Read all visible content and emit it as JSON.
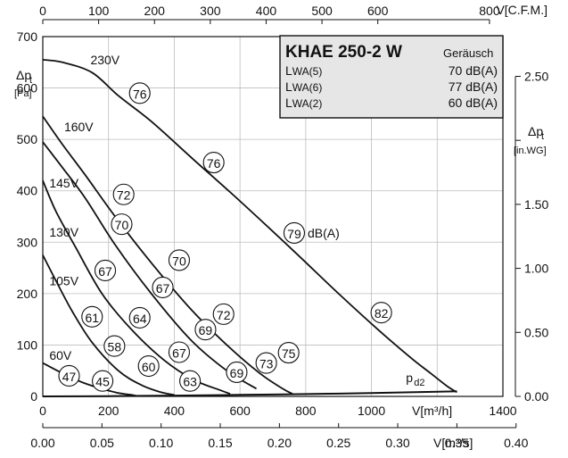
{
  "chart_data": {
    "type": "line",
    "title": "KHAE 250-2 W",
    "title_note": "Geräusch",
    "xlabel": "V[m³/h]",
    "ylabel": "Δpt [Pa]",
    "ylabel_main": "Δp",
    "ylabel_sub": "t",
    "ylabel_unit": "[Pa]",
    "x_top_label": "V[C.F.M.]",
    "x_bottom2_label": "V[m³/s]",
    "y_right_label_main": "Δp",
    "y_right_label_sub": "t",
    "y_right_label_unit": "[in.WG]",
    "xlim": [
      0,
      1400
    ],
    "ylim": [
      0,
      700
    ],
    "x_ticks": [
      "0",
      "200",
      "400",
      "600",
      "800",
      "1000",
      "1400"
    ],
    "y_ticks": [
      "0",
      "100",
      "200",
      "300",
      "400",
      "500",
      "600",
      "700"
    ],
    "x_top_ticks": [
      {
        "value": 0,
        "label": "0"
      },
      {
        "value": 100,
        "label": "100"
      },
      {
        "value": 200,
        "label": "200"
      },
      {
        "value": 300,
        "label": "300"
      },
      {
        "value": 400,
        "label": "400"
      },
      {
        "value": 500,
        "label": "500"
      },
      {
        "value": 600,
        "label": "600"
      },
      {
        "value": 800,
        "label": "800"
      }
    ],
    "x_bottom2_ticks": [
      {
        "value": 0.0,
        "label": "0.00"
      },
      {
        "value": 0.05,
        "label": "0.05"
      },
      {
        "value": 0.1,
        "label": "0.10"
      },
      {
        "value": 0.15,
        "label": "0.15"
      },
      {
        "value": 0.2,
        "label": "0.20"
      },
      {
        "value": 0.25,
        "label": "0.25"
      },
      {
        "value": 0.3,
        "label": "0.30"
      },
      {
        "value": 0.35,
        "label": "0.35"
      },
      {
        "value": 0.4,
        "label": "0.40"
      }
    ],
    "y_right_ticks": [
      {
        "value": 0.0,
        "label": "0.00"
      },
      {
        "value": 0.5,
        "label": "0.50"
      },
      {
        "value": 1.0,
        "label": "1.00"
      },
      {
        "value": 1.5,
        "label": "1.50"
      },
      {
        "value": 2.0,
        "label": ""
      },
      {
        "value": 2.5,
        "label": "2.50"
      }
    ],
    "series": [
      {
        "name": "230V",
        "label_pos": [
          145,
          655
        ],
        "x": [
          0,
          60,
          150,
          230,
          330,
          460,
          600,
          760,
          900,
          1020,
          1120,
          1180,
          1230,
          1260
        ],
        "y": [
          655,
          650,
          630,
          585,
          535,
          460,
          380,
          285,
          200,
          130,
          75,
          45,
          20,
          8
        ]
      },
      {
        "name": "160V",
        "label_pos": [
          65,
          525
        ],
        "x": [
          0,
          60,
          130,
          220,
          330,
          450,
          560,
          660,
          730,
          760
        ],
        "y": [
          545,
          490,
          430,
          350,
          260,
          170,
          100,
          45,
          15,
          5
        ]
      },
      {
        "name": "145V",
        "label_pos": [
          20,
          415
        ],
        "x": [
          0,
          60,
          130,
          220,
          330,
          450,
          560,
          650
        ],
        "y": [
          495,
          445,
          385,
          295,
          200,
          110,
          50,
          15
        ]
      },
      {
        "name": "130V",
        "label_pos": [
          20,
          320
        ],
        "x": [
          0,
          40,
          100,
          180,
          270,
          370,
          460,
          540,
          570
        ],
        "y": [
          420,
          360,
          290,
          200,
          130,
          70,
          32,
          12,
          5
        ]
      },
      {
        "name": "105V",
        "label_pos": [
          20,
          225
        ],
        "x": [
          0,
          40,
          90,
          150,
          230,
          300,
          360,
          400
        ],
        "y": [
          275,
          225,
          165,
          105,
          50,
          22,
          8,
          3
        ]
      },
      {
        "name": "60V",
        "label_pos": [
          20,
          80
        ],
        "x": [
          0,
          60,
          130,
          220,
          270,
          285
        ],
        "y": [
          65,
          45,
          25,
          8,
          3,
          1
        ]
      },
      {
        "name": "pd2",
        "label_pos": [
          1105,
          28
        ],
        "x": [
          0,
          200,
          400,
          600,
          800,
          1000,
          1150,
          1260
        ],
        "y": [
          0,
          0.5,
          1.5,
          3,
          4.5,
          6.5,
          8.5,
          10
        ]
      }
    ],
    "annotations": [
      {
        "text": "76",
        "x": 295,
        "y": 590
      },
      {
        "text": "76",
        "x": 520,
        "y": 455
      },
      {
        "text": "79",
        "x": 765,
        "y": 318
      },
      {
        "text": "82",
        "x": 1030,
        "y": 163
      },
      {
        "text": "72",
        "x": 246,
        "y": 393
      },
      {
        "text": "70",
        "x": 240,
        "y": 335
      },
      {
        "text": "70",
        "x": 415,
        "y": 265
      },
      {
        "text": "72",
        "x": 550,
        "y": 160
      },
      {
        "text": "75",
        "x": 748,
        "y": 85
      },
      {
        "text": "67",
        "x": 190,
        "y": 245
      },
      {
        "text": "67",
        "x": 365,
        "y": 212
      },
      {
        "text": "69",
        "x": 495,
        "y": 130
      },
      {
        "text": "73",
        "x": 680,
        "y": 65
      },
      {
        "text": "61",
        "x": 150,
        "y": 155
      },
      {
        "text": "64",
        "x": 295,
        "y": 153
      },
      {
        "text": "67",
        "x": 415,
        "y": 86
      },
      {
        "text": "69",
        "x": 590,
        "y": 47
      },
      {
        "text": "58",
        "x": 218,
        "y": 98
      },
      {
        "text": "60",
        "x": 322,
        "y": 59
      },
      {
        "text": "63",
        "x": 448,
        "y": 30
      },
      {
        "text": "47",
        "x": 80,
        "y": 40
      },
      {
        "text": "45",
        "x": 182,
        "y": 30
      }
    ],
    "annotation_unit": "dB(A)",
    "noise_table": [
      {
        "label": "L",
        "sub": "WA(5)",
        "value": "70 dB(A)"
      },
      {
        "label": "L",
        "sub": "WA(6)",
        "value": "77 dB(A)"
      },
      {
        "label": "L",
        "sub": "WA(2)",
        "value": "60 dB(A)"
      }
    ],
    "grid": true
  }
}
